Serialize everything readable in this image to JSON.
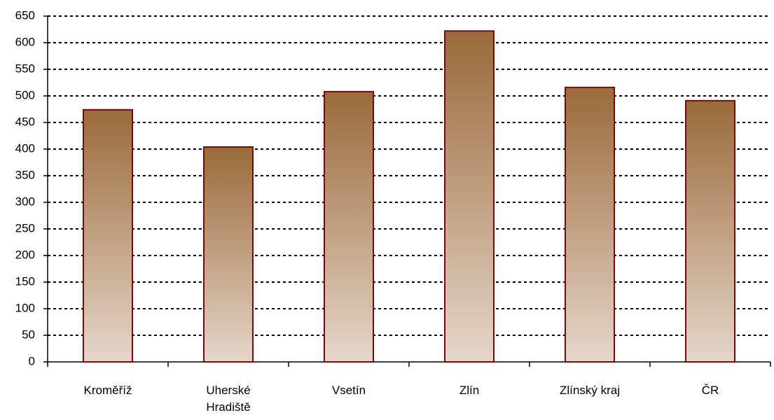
{
  "chart_data": {
    "type": "bar",
    "categories": [
      "Kroměříž",
      "Uherské Hradiště",
      "Vsetín",
      "Zlín",
      "Zlínský kraj",
      "ČR"
    ],
    "values": [
      474,
      404,
      508,
      622,
      516,
      491
    ],
    "color": "#9a6a3a",
    "ylim": [
      0,
      650
    ],
    "yticks": [
      0,
      50,
      100,
      150,
      200,
      250,
      300,
      350,
      400,
      450,
      500,
      550,
      600,
      650
    ],
    "grid": true
  }
}
